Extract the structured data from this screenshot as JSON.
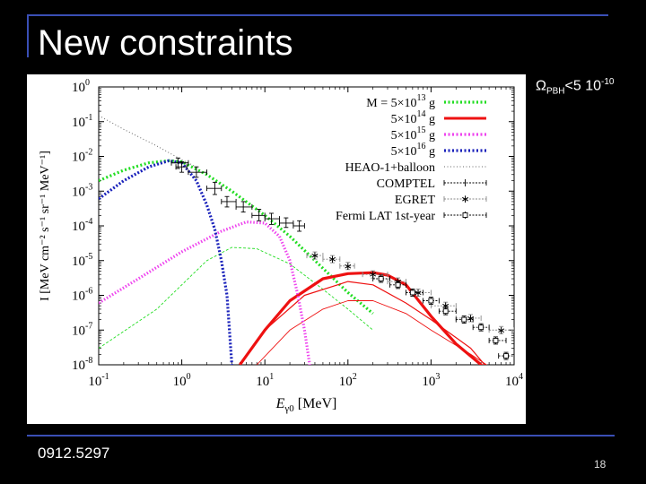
{
  "slide": {
    "title": "New constraints",
    "constraint_prefix": "Ω",
    "constraint_sub": "PBH",
    "constraint_mid": "<5 10",
    "constraint_exp": "-10",
    "reference": "0912.5297",
    "page_number": "18"
  },
  "colors": {
    "background": "#000000",
    "frame": "#3a4fb5",
    "m13": "#22dd22",
    "m14": "#ee1111",
    "m15": "#ee44ee",
    "m16": "#1a22bb",
    "data": "#000000",
    "egret": "#888888"
  },
  "chart_data": {
    "type": "line",
    "x_scale": "log",
    "y_scale": "log",
    "xlim": [
      0.1,
      10000
    ],
    "ylim": [
      1e-08,
      1
    ],
    "xlabel_main": "E",
    "xlabel_sub": "γ0",
    "xlabel_unit": "[MeV]",
    "ylabel": "I [MeV cm⁻² s⁻¹ sr⁻¹ MeV⁻¹]",
    "x_ticks": [
      {
        "value": 0.1,
        "base": "10",
        "exp": "-1"
      },
      {
        "value": 1,
        "base": "10",
        "exp": "0"
      },
      {
        "value": 10,
        "base": "10",
        "exp": "1"
      },
      {
        "value": 100,
        "base": "10",
        "exp": "2"
      },
      {
        "value": 1000,
        "base": "10",
        "exp": "3"
      },
      {
        "value": 10000,
        "base": "10",
        "exp": "4"
      }
    ],
    "y_ticks": [
      {
        "value": 1,
        "base": "10",
        "exp": "0"
      },
      {
        "value": 0.1,
        "base": "10",
        "exp": "-1"
      },
      {
        "value": 0.01,
        "base": "10",
        "exp": "-2"
      },
      {
        "value": 0.001,
        "base": "10",
        "exp": "-3"
      },
      {
        "value": 0.0001,
        "base": "10",
        "exp": "-4"
      },
      {
        "value": 1e-05,
        "base": "10",
        "exp": "-5"
      },
      {
        "value": 1e-06,
        "base": "10",
        "exp": "-6"
      },
      {
        "value": 1e-07,
        "base": "10",
        "exp": "-7"
      },
      {
        "value": 1e-08,
        "base": "10",
        "exp": "-8"
      }
    ],
    "legend": {
      "placement": "top-right",
      "entries": [
        {
          "key": "m13",
          "prefix": "M = 5×10",
          "exp": "13",
          "unit": "g",
          "color": "#22dd22",
          "style": "dotted-thick"
        },
        {
          "key": "m14",
          "prefix": "5×10",
          "exp": "14",
          "unit": "g",
          "color": "#ee1111",
          "style": "solid-thick"
        },
        {
          "key": "m15",
          "prefix": "5×10",
          "exp": "15",
          "unit": "g",
          "color": "#ee44ee",
          "style": "dotted-thick"
        },
        {
          "key": "m16",
          "prefix": "5×10",
          "exp": "16",
          "unit": "g",
          "color": "#1a22bb",
          "style": "dotted-thick"
        },
        {
          "key": "heao",
          "label": "HEAO-1+balloon",
          "color": "#666666",
          "style": "dotted-thin"
        },
        {
          "key": "comptel",
          "label": "COMPTEL",
          "color": "#000000",
          "style": "errorbar"
        },
        {
          "key": "egret",
          "label": "EGRET",
          "color": "#888888",
          "style": "errorbar-star"
        },
        {
          "key": "fermi",
          "label": "Fermi LAT 1st-year",
          "color": "#000000",
          "style": "errorbar-square"
        }
      ]
    },
    "series": [
      {
        "name": "M = 5×10^13 g",
        "key": "m13",
        "component": "total",
        "color": "#22dd22",
        "x": [
          0.1,
          0.2,
          0.4,
          0.7,
          1,
          2,
          4,
          10,
          20,
          50,
          100,
          200
        ],
        "y": [
          0.002,
          0.004,
          0.0065,
          0.0075,
          0.007,
          0.003,
          0.001,
          0.0002,
          5e-05,
          6e-06,
          1.2e-06,
          3e-07
        ]
      },
      {
        "key": "m13",
        "component": "secondary",
        "color": "#22dd22",
        "x": [
          0.1,
          0.5,
          1,
          2,
          4,
          8,
          20,
          50,
          100,
          200
        ],
        "y": [
          3e-08,
          4e-07,
          2e-06,
          1e-05,
          2.4e-05,
          2.2e-05,
          8e-06,
          1.5e-06,
          4e-07,
          1e-07
        ]
      },
      {
        "name": "5×10^14 g",
        "key": "m14",
        "component": "total",
        "color": "#ee1111",
        "x": [
          5,
          10,
          20,
          50,
          100,
          200,
          300,
          500,
          1000,
          2000,
          4000,
          10000
        ],
        "y": [
          1e-08,
          1e-07,
          7e-07,
          3e-06,
          4.2e-06,
          4.5e-06,
          3.8e-06,
          2e-06,
          2.5e-07,
          4e-08,
          1e-08,
          1e-09
        ]
      },
      {
        "key": "m14",
        "component": "secondary",
        "color": "#ee1111",
        "x": [
          8,
          20,
          50,
          100,
          200,
          500,
          1000,
          3000,
          10000
        ],
        "y": [
          1e-08,
          1e-07,
          4e-07,
          7e-07,
          7e-07,
          3e-07,
          1e-07,
          2e-08,
          3e-09
        ]
      },
      {
        "key": "m14",
        "component": "secondary-2",
        "color": "#ee1111",
        "x": [
          5,
          10,
          30,
          100,
          200,
          500,
          1000,
          3000,
          10000
        ],
        "y": [
          1e-08,
          1e-07,
          1e-06,
          2.5e-06,
          2e-06,
          6e-07,
          2e-07,
          3e-08,
          1e-09
        ]
      },
      {
        "name": "5×10^15 g",
        "key": "m15",
        "component": "total",
        "color": "#ee44ee",
        "x": [
          0.1,
          0.3,
          1,
          3,
          6,
          10,
          15,
          20,
          25,
          30,
          40
        ],
        "y": [
          6e-07,
          3e-06,
          1.8e-05,
          7e-05,
          0.00013,
          0.00012,
          5e-05,
          1e-05,
          1e-06,
          1e-07,
          1e-09
        ]
      },
      {
        "name": "5×10^16 g",
        "key": "m16",
        "component": "total",
        "color": "#1a22bb",
        "x": [
          0.1,
          0.2,
          0.4,
          0.7,
          1,
          1.5,
          2,
          2.5,
          3,
          3.5,
          4,
          5
        ],
        "y": [
          0.0006,
          0.002,
          0.005,
          0.0075,
          0.0065,
          0.002,
          0.0004,
          8e-05,
          1e-05,
          1e-06,
          1e-08,
          1e-09
        ]
      },
      {
        "name": "HEAO-1+balloon",
        "key": "heao",
        "component": "data",
        "color": "#666666",
        "x": [
          0.1,
          0.2,
          0.5,
          1,
          1.5
        ],
        "y": [
          0.15,
          0.06,
          0.02,
          0.008,
          0.005
        ]
      }
    ],
    "comptel": [
      {
        "x": 0.9,
        "y": 0.0065,
        "xlo": 0.75,
        "xhi": 1.2,
        "ylo": 0.0045,
        "yhi": 0.009
      },
      {
        "x": 1.0,
        "y": 0.005,
        "xlo": 0.85,
        "xhi": 1.15,
        "ylo": 0.0035,
        "yhi": 0.007
      },
      {
        "x": 1.5,
        "y": 0.0035,
        "xlo": 1.2,
        "xhi": 2.0,
        "ylo": 0.0025,
        "yhi": 0.005
      },
      {
        "x": 2.5,
        "y": 0.0012,
        "xlo": 2.0,
        "xhi": 3.0,
        "ylo": 0.0008,
        "yhi": 0.0018
      },
      {
        "x": 3.5,
        "y": 0.0005,
        "xlo": 3.0,
        "xhi": 4.5,
        "ylo": 0.00035,
        "yhi": 0.0007
      },
      {
        "x": 5.5,
        "y": 0.00035,
        "xlo": 4.5,
        "xhi": 7.0,
        "ylo": 0.00025,
        "yhi": 0.0005
      },
      {
        "x": 8.5,
        "y": 0.0002,
        "xlo": 7.0,
        "xhi": 10.0,
        "ylo": 0.00014,
        "yhi": 0.0003
      },
      {
        "x": 12.0,
        "y": 0.00016,
        "xlo": 10.0,
        "xhi": 15.0,
        "ylo": 0.00011,
        "yhi": 0.00023
      },
      {
        "x": 18.0,
        "y": 0.00012,
        "xlo": 15.0,
        "xhi": 22.0,
        "ylo": 9e-05,
        "yhi": 0.00017
      },
      {
        "x": 26.0,
        "y": 0.0001,
        "xlo": 22.0,
        "xhi": 30.0,
        "ylo": 7e-05,
        "yhi": 0.00014
      }
    ],
    "egret": [
      {
        "x": 40,
        "y": 1.4e-05,
        "xlo": 32,
        "xhi": 50
      },
      {
        "x": 65,
        "y": 1.1e-05,
        "xlo": 50,
        "xhi": 80
      },
      {
        "x": 100,
        "y": 7e-06,
        "xlo": 80,
        "xhi": 120
      },
      {
        "x": 200,
        "y": 4e-06,
        "xlo": 150,
        "xhi": 300
      },
      {
        "x": 400,
        "y": 2.5e-06,
        "xlo": 300,
        "xhi": 500
      },
      {
        "x": 700,
        "y": 1.2e-06,
        "xlo": 500,
        "xhi": 1000
      },
      {
        "x": 1500,
        "y": 5e-07,
        "xlo": 1000,
        "xhi": 2000
      },
      {
        "x": 3000,
        "y": 2.2e-07,
        "xlo": 2000,
        "xhi": 4000
      },
      {
        "x": 7000,
        "y": 1e-07,
        "xlo": 5000,
        "xhi": 10000
      }
    ],
    "fermi": [
      {
        "x": 250,
        "y": 3e-06,
        "xlo": 200,
        "xhi": 320
      },
      {
        "x": 400,
        "y": 2e-06,
        "xlo": 320,
        "xhi": 500
      },
      {
        "x": 600,
        "y": 1.2e-06,
        "xlo": 500,
        "xhi": 800
      },
      {
        "x": 1000,
        "y": 7e-07,
        "xlo": 800,
        "xhi": 1250
      },
      {
        "x": 1500,
        "y": 3.5e-07,
        "xlo": 1250,
        "xhi": 2000
      },
      {
        "x": 2500,
        "y": 2e-07,
        "xlo": 2000,
        "xhi": 3200
      },
      {
        "x": 4000,
        "y": 1.2e-07,
        "xlo": 3200,
        "xhi": 5000
      },
      {
        "x": 6000,
        "y": 5e-08,
        "xlo": 5000,
        "xhi": 8000
      },
      {
        "x": 8000,
        "y": 1.8e-08,
        "xlo": 6500,
        "xhi": 10000
      }
    ]
  }
}
